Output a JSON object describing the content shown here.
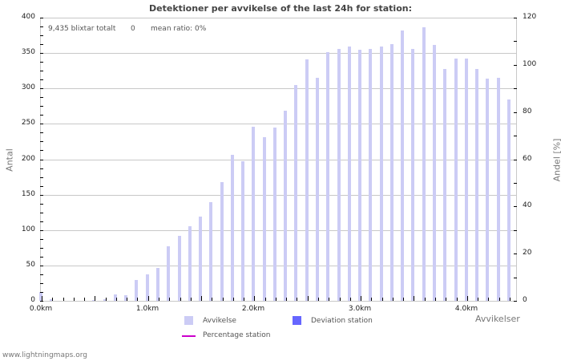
{
  "header": {
    "title": "Detektioner per avvikelse of the last 24h for station:"
  },
  "stats": {
    "total": "9,435 blixtar totalt",
    "station_count": "0",
    "mean_ratio": "mean ratio: 0%"
  },
  "axes": {
    "left_title": "Antal",
    "right_title": "Andel [%]",
    "x_title": "Avvikelser",
    "left_ticks": [
      "0",
      "50",
      "100",
      "150",
      "200",
      "250",
      "300",
      "350",
      "400"
    ],
    "right_ticks": [
      "0",
      "20",
      "40",
      "60",
      "80",
      "100",
      "120"
    ],
    "x_ticks": [
      "0.0km",
      "1.0km",
      "2.0km",
      "3.0km",
      "4.0km"
    ]
  },
  "legend": {
    "items": [
      {
        "label": "Avvikelse",
        "color": "#ccccf5"
      },
      {
        "label": "Deviation station",
        "color": "#6666ff"
      },
      {
        "label": "Percentage station",
        "color": "#cc00cc"
      }
    ]
  },
  "footer": {
    "credit": "www.lightningmaps.org"
  },
  "chart_data": {
    "type": "bar",
    "title": "Detektioner per avvikelse of the last 24h for station:",
    "xlabel": "Avvikelser",
    "ylabel": "Antal",
    "y2label": "Andel [%]",
    "ylim": [
      0,
      400
    ],
    "y2lim": [
      0,
      120
    ],
    "grid": true,
    "legend_position": "bottom",
    "categories": [
      "0.0",
      "0.1",
      "0.2",
      "0.3",
      "0.4",
      "0.5",
      "0.6",
      "0.7",
      "0.8",
      "0.9",
      "1.0",
      "1.1",
      "1.2",
      "1.3",
      "1.4",
      "1.5",
      "1.6",
      "1.7",
      "1.8",
      "1.9",
      "2.0",
      "2.1",
      "2.2",
      "2.3",
      "2.4",
      "2.5",
      "2.6",
      "2.7",
      "2.8",
      "2.9",
      "3.0",
      "3.1",
      "3.2",
      "3.3",
      "3.4",
      "3.5",
      "3.6",
      "3.7",
      "3.8",
      "3.9",
      "4.0",
      "4.1",
      "4.2",
      "4.3",
      "4.4"
    ],
    "series": [
      {
        "name": "Avvikelse",
        "color": "#ccccf5",
        "values": [
          12,
          2,
          0,
          0,
          0,
          1,
          2,
          9,
          8,
          30,
          37,
          46,
          77,
          92,
          105,
          119,
          139,
          168,
          206,
          197,
          246,
          231,
          245,
          269,
          305,
          341,
          315,
          351,
          356,
          359,
          355,
          356,
          359,
          363,
          382,
          356,
          386,
          362,
          327,
          342,
          342,
          327,
          314,
          315,
          284
        ]
      },
      {
        "name": "Deviation station",
        "color": "#6666ff",
        "values": []
      },
      {
        "name": "Percentage station",
        "color": "#cc00cc",
        "values": []
      }
    ]
  }
}
